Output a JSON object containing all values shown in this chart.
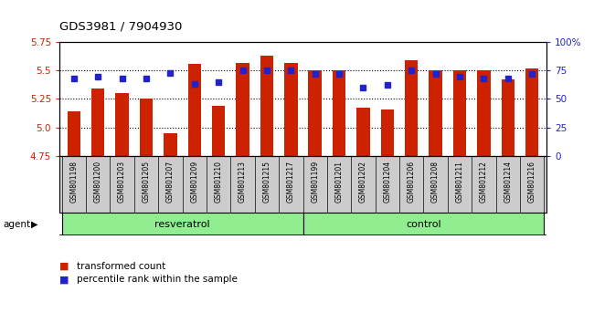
{
  "title": "GDS3981 / 7904930",
  "samples": [
    "GSM801198",
    "GSM801200",
    "GSM801203",
    "GSM801205",
    "GSM801207",
    "GSM801209",
    "GSM801210",
    "GSM801213",
    "GSM801215",
    "GSM801217",
    "GSM801199",
    "GSM801201",
    "GSM801202",
    "GSM801204",
    "GSM801206",
    "GSM801208",
    "GSM801211",
    "GSM801212",
    "GSM801214",
    "GSM801216"
  ],
  "bar_values": [
    5.14,
    5.34,
    5.3,
    5.25,
    4.95,
    5.56,
    5.19,
    5.57,
    5.63,
    5.57,
    5.5,
    5.5,
    5.17,
    5.16,
    5.59,
    5.5,
    5.5,
    5.5,
    5.42,
    5.52
  ],
  "dot_values": [
    68,
    70,
    68,
    68,
    73,
    63,
    65,
    75,
    75,
    75,
    72,
    72,
    60,
    62,
    75,
    72,
    70,
    68,
    68,
    72
  ],
  "ylim_left": [
    4.75,
    5.75
  ],
  "ylim_right": [
    0,
    100
  ],
  "yticks_left": [
    4.75,
    5.0,
    5.25,
    5.5,
    5.75
  ],
  "yticks_right": [
    0,
    25,
    50,
    75,
    100
  ],
  "ytick_labels_right": [
    "0",
    "25",
    "50",
    "75",
    "100%"
  ],
  "grid_values": [
    5.0,
    5.25,
    5.5
  ],
  "bar_color": "#cc2200",
  "dot_color": "#2222cc",
  "bar_width": 0.55,
  "legend_bar_label": "transformed count",
  "legend_dot_label": "percentile rank within the sample",
  "background_color": "#ffffff",
  "tick_label_color_left": "#cc2200",
  "tick_label_color_right": "#2222cc",
  "xticklabel_bg": "#cccccc",
  "agent_bg": "#90ee90",
  "resv_label": "resveratrol",
  "ctrl_label": "control"
}
